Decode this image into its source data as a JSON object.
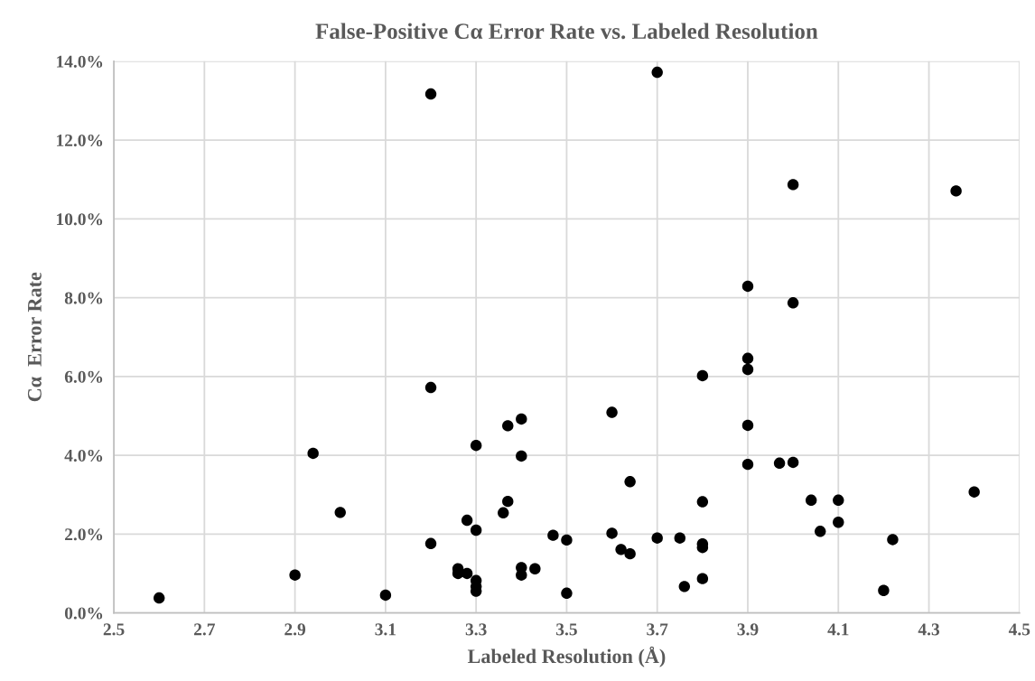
{
  "chart_data": {
    "type": "scatter",
    "title": "False-Positive Cα Error Rate vs. Labeled Resolution",
    "xlabel": "Labeled Resolution (Å)",
    "ylabel": "Cα  Error Rate",
    "x": [
      2.6,
      2.9,
      2.94,
      3.0,
      3.1,
      3.2,
      3.2,
      3.2,
      3.26,
      3.26,
      3.28,
      3.28,
      3.3,
      3.3,
      3.3,
      3.3,
      3.3,
      3.36,
      3.37,
      3.37,
      3.4,
      3.4,
      3.4,
      3.4,
      3.43,
      3.47,
      3.5,
      3.5,
      3.6,
      3.6,
      3.62,
      3.64,
      3.64,
      3.7,
      3.7,
      3.75,
      3.76,
      3.8,
      3.8,
      3.8,
      3.8,
      3.8,
      3.9,
      3.9,
      3.9,
      3.9,
      3.9,
      3.97,
      4.0,
      4.0,
      4.0,
      4.04,
      4.06,
      4.1,
      4.1,
      4.2,
      4.22,
      4.36,
      4.4
    ],
    "values": [
      0.38,
      0.96,
      4.05,
      2.55,
      0.45,
      13.17,
      5.72,
      1.76,
      1.12,
      1.0,
      1.0,
      2.35,
      2.1,
      0.82,
      0.67,
      0.55,
      4.25,
      2.54,
      4.75,
      2.83,
      4.92,
      3.98,
      1.15,
      0.96,
      1.12,
      1.97,
      1.85,
      0.5,
      5.09,
      2.02,
      1.61,
      1.5,
      3.33,
      13.72,
      1.9,
      1.9,
      0.67,
      6.02,
      2.82,
      1.75,
      1.66,
      0.87,
      8.29,
      6.46,
      6.18,
      4.76,
      3.77,
      3.8,
      10.87,
      7.87,
      3.82,
      2.86,
      2.07,
      2.86,
      2.3,
      0.57,
      1.86,
      10.71,
      3.07
    ],
    "color": "#000000",
    "marker": "circle",
    "grid": true,
    "xlim": [
      2.5,
      4.5
    ],
    "xticks": [
      2.5,
      2.7,
      2.9,
      3.1,
      3.3,
      3.5,
      3.7,
      3.9,
      4.1,
      4.3,
      4.5
    ],
    "ylim": [
      0,
      14
    ],
    "yticks": [
      {
        "value": 0,
        "label": "0.0%"
      },
      {
        "value": 2,
        "label": "2.0%"
      },
      {
        "value": 4,
        "label": "4.0%"
      },
      {
        "value": 6,
        "label": "6.0%"
      },
      {
        "value": 8,
        "label": "8.0%"
      },
      {
        "value": 10,
        "label": "10.0%"
      },
      {
        "value": 12,
        "label": "12.0%"
      },
      {
        "value": 14,
        "label": "14.0%"
      }
    ]
  }
}
